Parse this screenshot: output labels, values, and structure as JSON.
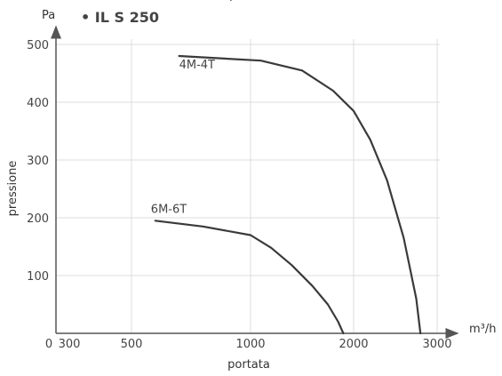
{
  "header": {
    "cropped_text": "portata"
  },
  "chart_data": {
    "type": "line",
    "title": "• IL S 250",
    "xlabel": "portata",
    "ylabel": "pressione",
    "x_unit": "m³/h",
    "y_unit": "Pa",
    "x_tick_labels": [
      "0",
      "300",
      "500",
      "1000",
      "2000",
      "3000"
    ],
    "y_ticks": [
      100,
      200,
      300,
      400,
      500
    ],
    "ylim": [
      0,
      500
    ],
    "grid": true,
    "series": [
      {
        "name": "4M-4T",
        "x": [
          700,
          1100,
          1500,
          1800,
          2000,
          2200,
          2400,
          2600,
          2750,
          2800
        ],
        "y": [
          480,
          472,
          455,
          420,
          385,
          335,
          265,
          165,
          60,
          0
        ]
      },
      {
        "name": "6M-6T",
        "x": [
          600,
          800,
          1000,
          1200,
          1400,
          1600,
          1750,
          1850,
          1900
        ],
        "y": [
          195,
          185,
          170,
          148,
          118,
          82,
          50,
          20,
          0
        ]
      }
    ]
  }
}
